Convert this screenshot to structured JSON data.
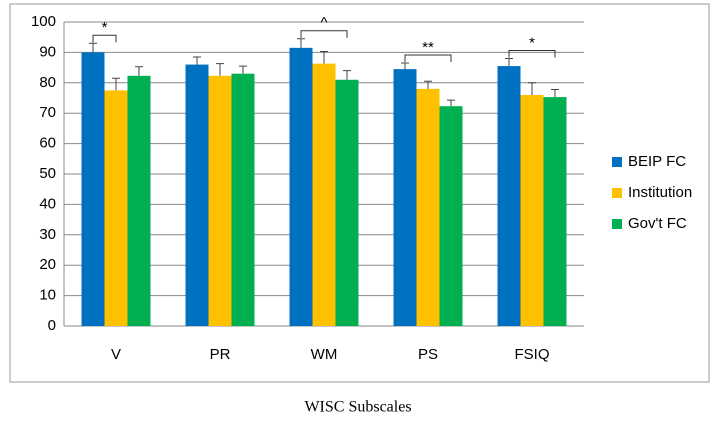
{
  "chart_data": {
    "type": "bar",
    "x_label": "WISC Subscales",
    "categories": [
      "V",
      "PR",
      "WM",
      "PS",
      "FSIQ"
    ],
    "series": [
      {
        "name": "BEIP FC",
        "color": "#0070c0",
        "values": [
          90,
          86,
          91.5,
          84.5,
          85.5
        ],
        "errors": [
          3,
          2.5,
          3,
          2,
          2.5
        ]
      },
      {
        "name": "Institution",
        "color": "#ffc000",
        "values": [
          77.5,
          82.3,
          86.3,
          78,
          76
        ],
        "errors": [
          4,
          4,
          4,
          2.5,
          4
        ]
      },
      {
        "name": "Gov't FC",
        "color": "#00b050",
        "values": [
          82.3,
          83,
          81,
          72.3,
          75.3
        ],
        "errors": [
          3,
          2.5,
          3,
          2,
          2.5
        ]
      }
    ],
    "annotations": [
      {
        "text": "*",
        "category": "V",
        "from": "BEIP FC",
        "to": "Institution"
      },
      {
        "text": "^",
        "category": "WM",
        "from": "BEIP FC",
        "to": "Gov't FC"
      },
      {
        "text": "**",
        "category": "PS",
        "from": "BEIP FC",
        "to": "Gov't FC"
      },
      {
        "text": "*",
        "category": "FSIQ",
        "from": "BEIP FC",
        "to": "Gov't FC"
      }
    ],
    "ylim": [
      0,
      100
    ],
    "yticks": [
      0,
      10,
      20,
      30,
      40,
      50,
      60,
      70,
      80,
      90,
      100
    ],
    "grid": true,
    "legend": "right"
  }
}
